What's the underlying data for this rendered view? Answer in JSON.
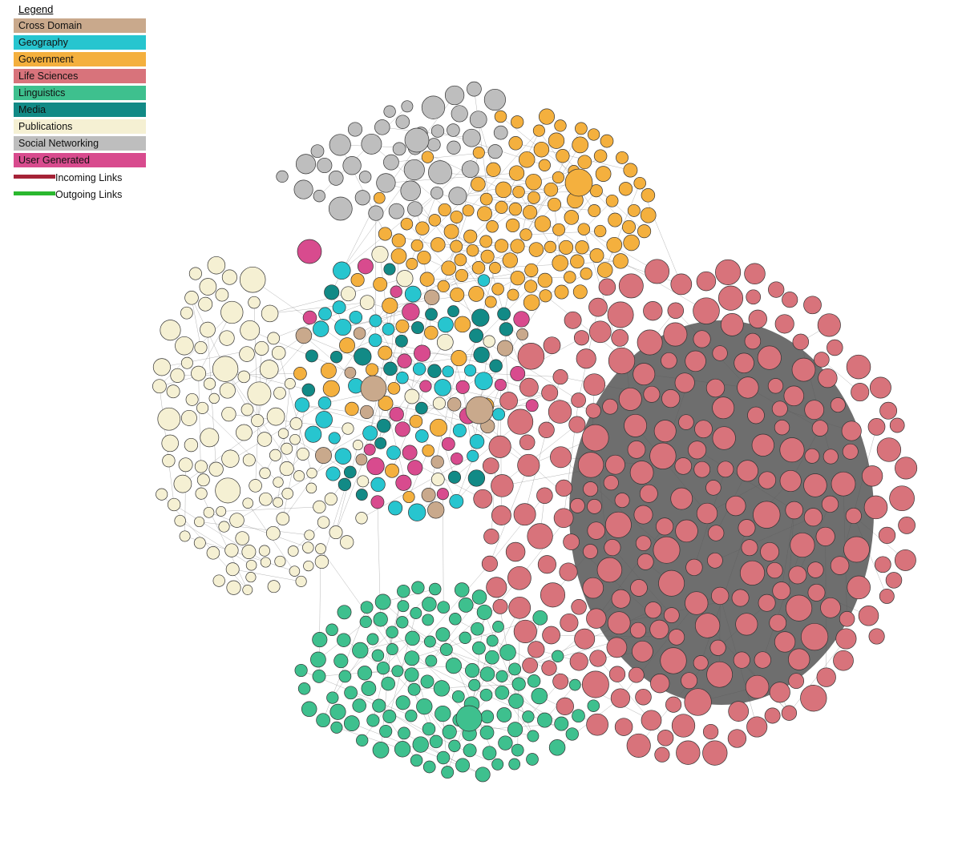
{
  "legend": {
    "title": "Legend",
    "categories": [
      {
        "label": "Cross Domain",
        "color": "#c9a98c"
      },
      {
        "label": "Geography",
        "color": "#27c5cf"
      },
      {
        "label": "Government",
        "color": "#f4b03e"
      },
      {
        "label": "Life Sciences",
        "color": "#d8737b"
      },
      {
        "label": "Linguistics",
        "color": "#3ec08e"
      },
      {
        "label": "Media",
        "color": "#128a86"
      },
      {
        "label": "Publications",
        "color": "#f5f0d3"
      },
      {
        "label": "Social Networking",
        "color": "#bebebe"
      },
      {
        "label": "User Generated",
        "color": "#d84b8e"
      }
    ],
    "links": [
      {
        "label": "Incoming Links",
        "color": "#a52337"
      },
      {
        "label": "Outgoing Links",
        "color": "#2ab82e"
      }
    ]
  }
}
